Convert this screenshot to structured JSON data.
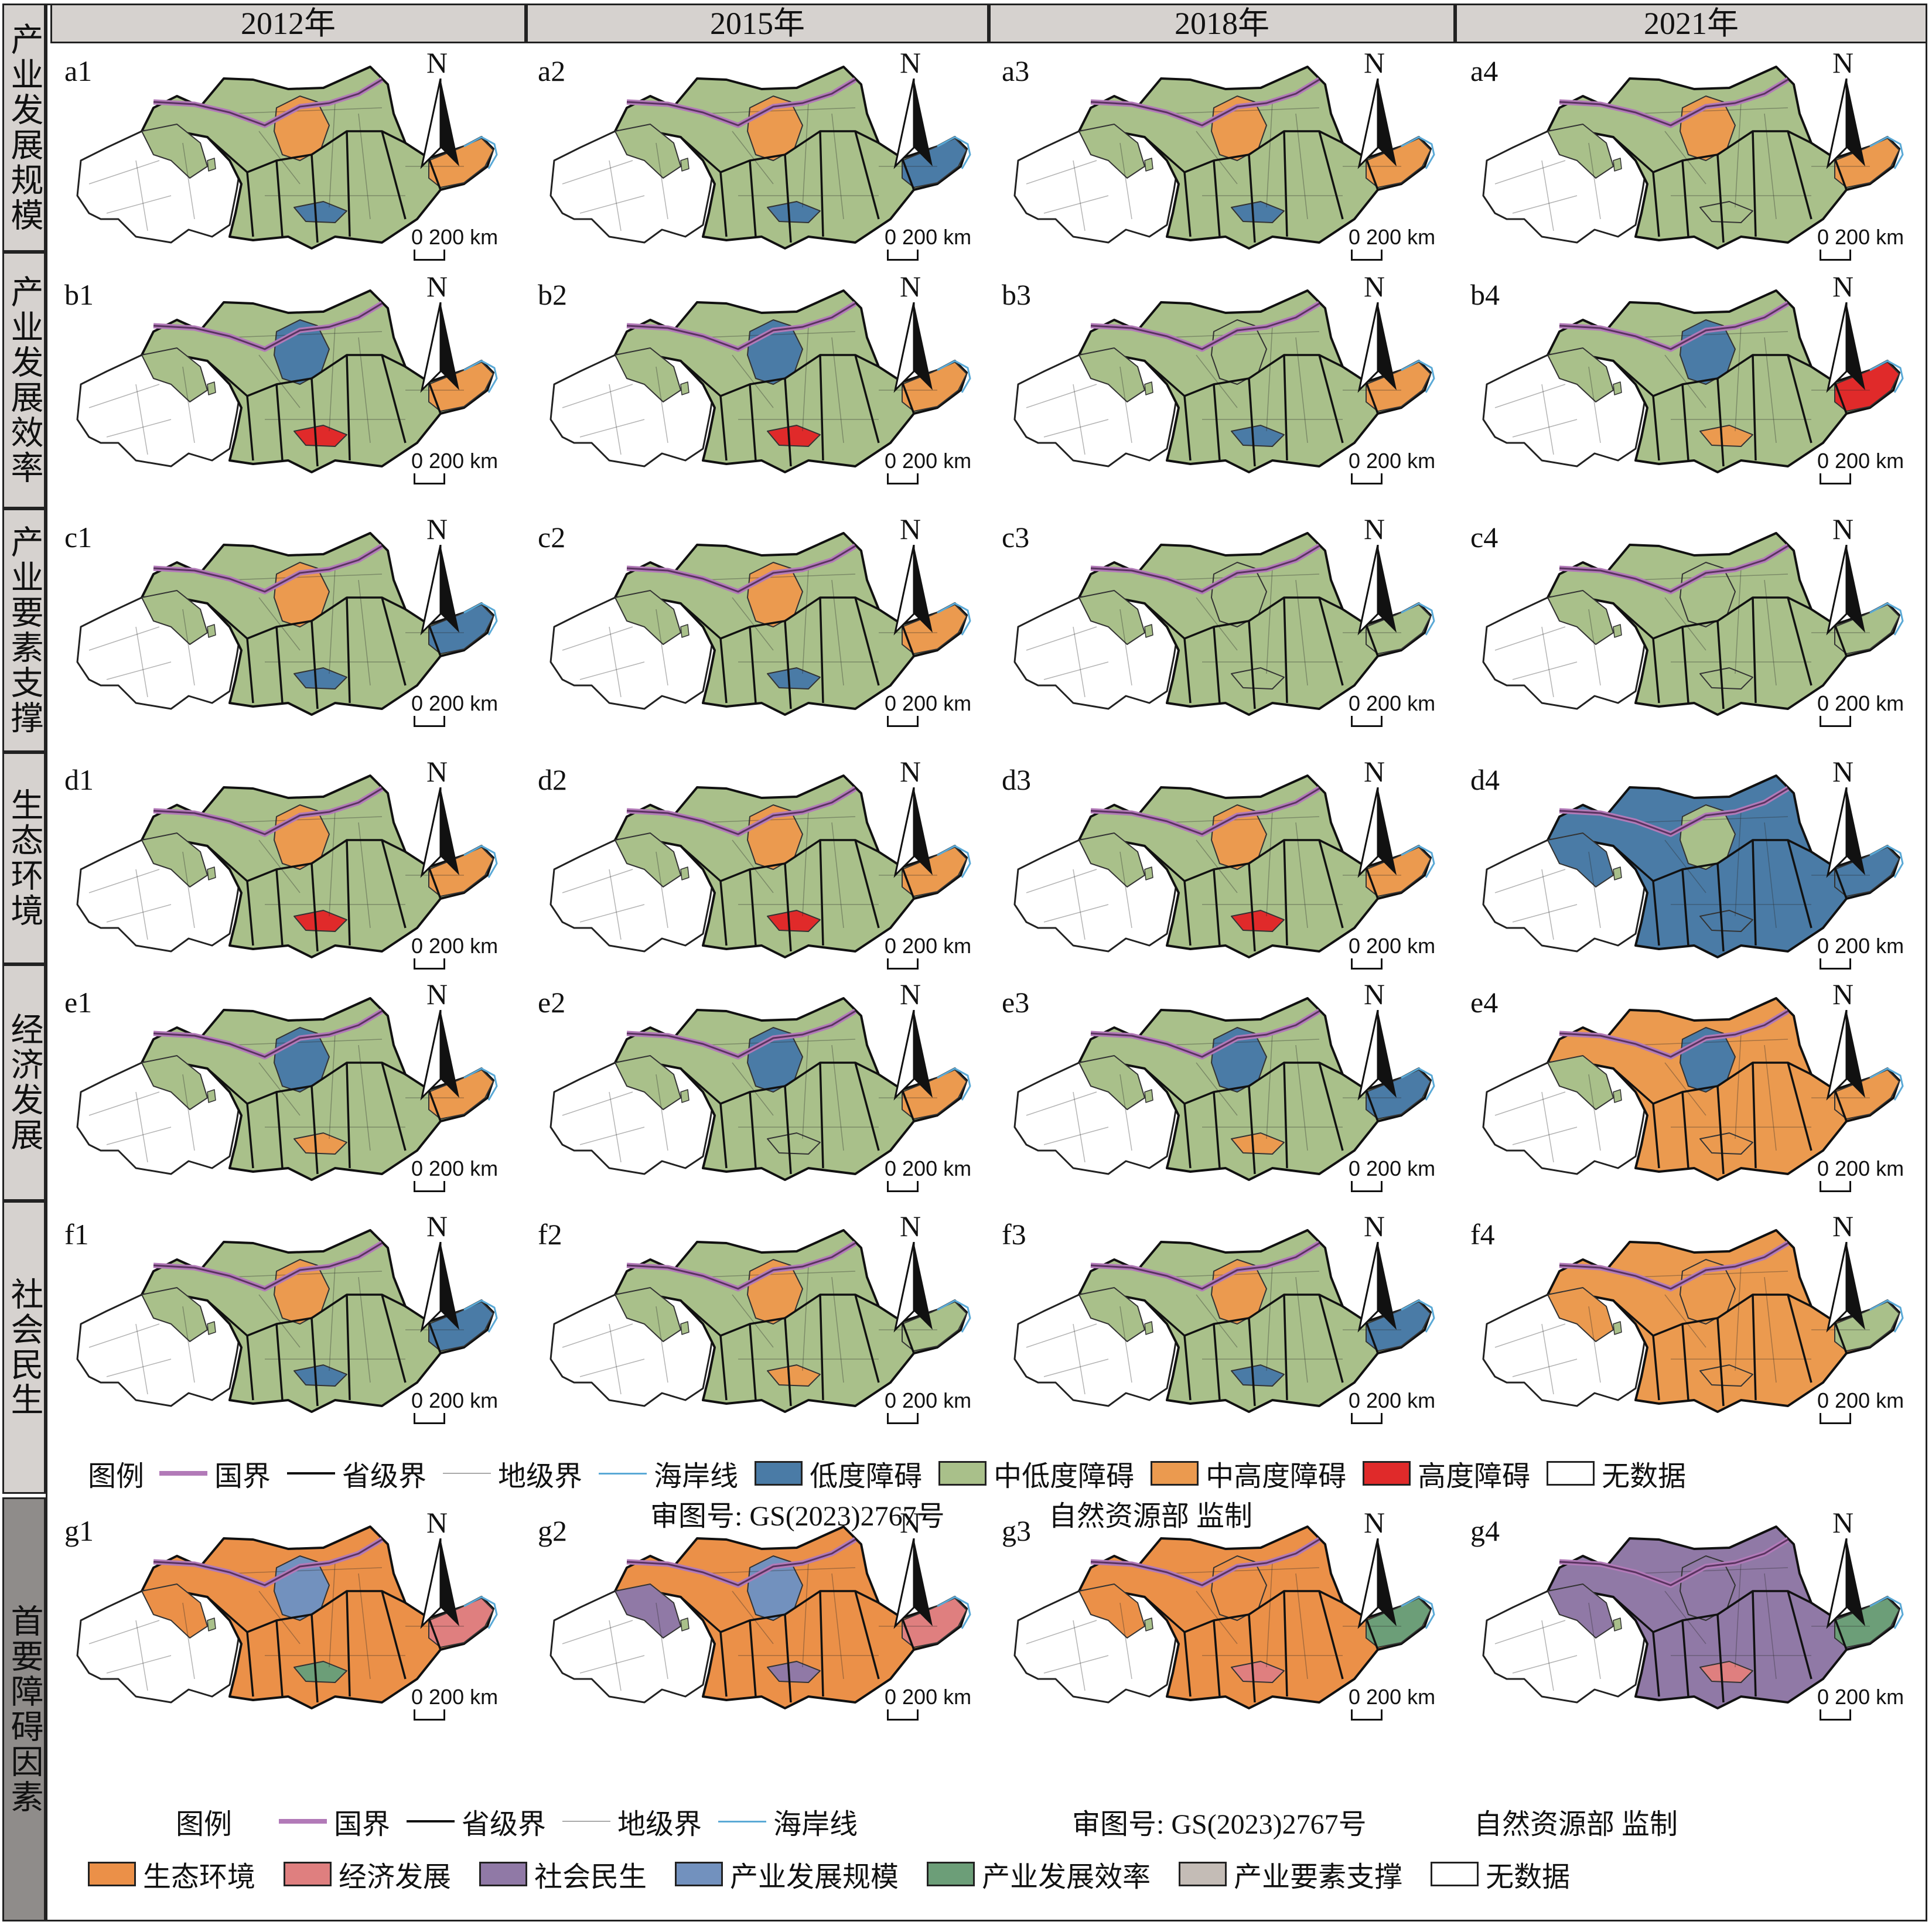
{
  "columns": [
    "2012年",
    "2015年",
    "2018年",
    "2021年"
  ],
  "rows": [
    {
      "id": "a",
      "label": "产业发展规模"
    },
    {
      "id": "b",
      "label": "产业发展效率"
    },
    {
      "id": "c",
      "label": "产业要素支撑"
    },
    {
      "id": "d",
      "label": "生态环境"
    },
    {
      "id": "e",
      "label": "经济发展"
    },
    {
      "id": "f",
      "label": "社会民生"
    },
    {
      "id": "g",
      "label": "首要障碍因素"
    }
  ],
  "panel_labels": {
    "a": [
      "a1",
      "a2",
      "a3",
      "a4"
    ],
    "b": [
      "b1",
      "b2",
      "b3",
      "b4"
    ],
    "c": [
      "c1",
      "c2",
      "c3",
      "c4"
    ],
    "d": [
      "d1",
      "d2",
      "d3",
      "d4"
    ],
    "e": [
      "e1",
      "e2",
      "e3",
      "e4"
    ],
    "f": [
      "f1",
      "f2",
      "f3",
      "f4"
    ],
    "g": [
      "g1",
      "g2",
      "g3",
      "g4"
    ]
  },
  "north_label": "N",
  "scale_label": "0 200 km",
  "legend1": {
    "title": "图例",
    "lines": [
      {
        "label": "国界",
        "color": "#b27ab8"
      },
      {
        "label": "省级界",
        "color": "#111111"
      },
      {
        "label": "地级界",
        "color": "#aaaaaa"
      },
      {
        "label": "海岸线",
        "color": "#5aa9d6"
      }
    ],
    "classes": [
      {
        "label": "低度障碍",
        "color": "#4a7ba6"
      },
      {
        "label": "中低度障碍",
        "color": "#a9c08a"
      },
      {
        "label": "中高度障碍",
        "color": "#eb9a4f"
      },
      {
        "label": "高度障碍",
        "color": "#e02a2a"
      },
      {
        "label": "无数据",
        "color": "#ffffff"
      }
    ],
    "review_no": "审图号: GS(2023)2767号",
    "supervisor": "自然资源部 监制"
  },
  "legend2": {
    "title": "图例",
    "lines": [
      {
        "label": "国界",
        "color": "#b27ab8"
      },
      {
        "label": "省级界",
        "color": "#111111"
      },
      {
        "label": "地级界",
        "color": "#aaaaaa"
      },
      {
        "label": "海岸线",
        "color": "#5aa9d6"
      }
    ],
    "review_no": "审图号: GS(2023)2767号",
    "supervisor": "自然资源部 监制",
    "classes": [
      {
        "label": "生态环境",
        "color": "#eb9048"
      },
      {
        "label": "经济发展",
        "color": "#df7f7f"
      },
      {
        "label": "社会民生",
        "color": "#9079a6"
      },
      {
        "label": "产业发展规模",
        "color": "#7291be"
      },
      {
        "label": "产业发展效率",
        "color": "#6c9e78"
      },
      {
        "label": "产业要素支撑",
        "color": "#c4bcb6"
      },
      {
        "label": "无数据",
        "color": "#ffffff"
      }
    ]
  },
  "map_fills": {
    "a": [
      {
        "base": "#a9c08a",
        "north": "#eb9a4f",
        "east": "#eb9a4f",
        "south": "#4a7ba6",
        "west": "#a9c08a"
      },
      {
        "base": "#a9c08a",
        "north": "#eb9a4f",
        "east": "#4a7ba6",
        "south": "#4a7ba6",
        "west": "#a9c08a"
      },
      {
        "base": "#a9c08a",
        "north": "#eb9a4f",
        "east": "#eb9a4f",
        "south": "#4a7ba6",
        "west": "#a9c08a"
      },
      {
        "base": "#a9c08a",
        "north": "#eb9a4f",
        "east": "#eb9a4f",
        "south": "#a9c08a",
        "west": "#a9c08a"
      }
    ],
    "b": [
      {
        "base": "#a9c08a",
        "north": "#4a7ba6",
        "east": "#eb9a4f",
        "south": "#e02a2a",
        "west": "#a9c08a"
      },
      {
        "base": "#a9c08a",
        "north": "#4a7ba6",
        "east": "#eb9a4f",
        "south": "#e02a2a",
        "west": "#a9c08a"
      },
      {
        "base": "#a9c08a",
        "north": "#a9c08a",
        "east": "#eb9a4f",
        "south": "#4a7ba6",
        "west": "#a9c08a"
      },
      {
        "base": "#a9c08a",
        "north": "#4a7ba6",
        "east": "#e02a2a",
        "south": "#eb9a4f",
        "west": "#a9c08a"
      }
    ],
    "c": [
      {
        "base": "#a9c08a",
        "north": "#eb9a4f",
        "east": "#4a7ba6",
        "south": "#4a7ba6",
        "west": "#a9c08a"
      },
      {
        "base": "#a9c08a",
        "north": "#eb9a4f",
        "east": "#eb9a4f",
        "south": "#4a7ba6",
        "west": "#a9c08a"
      },
      {
        "base": "#a9c08a",
        "north": "#a9c08a",
        "east": "#a9c08a",
        "south": "#a9c08a",
        "west": "#a9c08a"
      },
      {
        "base": "#a9c08a",
        "north": "#a9c08a",
        "east": "#a9c08a",
        "south": "#a9c08a",
        "west": "#a9c08a"
      }
    ],
    "d": [
      {
        "base": "#a9c08a",
        "north": "#eb9a4f",
        "east": "#eb9a4f",
        "south": "#e02a2a",
        "west": "#a9c08a"
      },
      {
        "base": "#a9c08a",
        "north": "#eb9a4f",
        "east": "#eb9a4f",
        "south": "#e02a2a",
        "west": "#a9c08a"
      },
      {
        "base": "#a9c08a",
        "north": "#eb9a4f",
        "east": "#eb9a4f",
        "south": "#e02a2a",
        "west": "#a9c08a"
      },
      {
        "base": "#4a7ba6",
        "north": "#a9c08a",
        "east": "#4a7ba6",
        "south": "#4a7ba6",
        "west": "#4a7ba6"
      }
    ],
    "e": [
      {
        "base": "#a9c08a",
        "north": "#4a7ba6",
        "east": "#eb9a4f",
        "south": "#eb9a4f",
        "west": "#a9c08a"
      },
      {
        "base": "#a9c08a",
        "north": "#4a7ba6",
        "east": "#eb9a4f",
        "south": "#a9c08a",
        "west": "#a9c08a"
      },
      {
        "base": "#a9c08a",
        "north": "#4a7ba6",
        "east": "#4a7ba6",
        "south": "#eb9a4f",
        "west": "#a9c08a"
      },
      {
        "base": "#eb9a4f",
        "north": "#4a7ba6",
        "east": "#eb9a4f",
        "south": "#eb9a4f",
        "west": "#a9c08a"
      }
    ],
    "f": [
      {
        "base": "#a9c08a",
        "north": "#eb9a4f",
        "east": "#4a7ba6",
        "south": "#4a7ba6",
        "west": "#a9c08a"
      },
      {
        "base": "#a9c08a",
        "north": "#eb9a4f",
        "east": "#a9c08a",
        "south": "#eb9a4f",
        "west": "#a9c08a"
      },
      {
        "base": "#a9c08a",
        "north": "#eb9a4f",
        "east": "#4a7ba6",
        "south": "#4a7ba6",
        "west": "#a9c08a"
      },
      {
        "base": "#eb9a4f",
        "north": "#eb9a4f",
        "east": "#a9c08a",
        "south": "#eb9a4f",
        "west": "#eb9a4f"
      }
    ],
    "g": [
      {
        "base": "#eb9048",
        "north": "#7291be",
        "east": "#df7f7f",
        "south": "#6c9e78",
        "west": "#eb9048"
      },
      {
        "base": "#eb9048",
        "north": "#7291be",
        "east": "#df7f7f",
        "south": "#9079a6",
        "west": "#9079a6"
      },
      {
        "base": "#eb9048",
        "north": "#eb9048",
        "east": "#6c9e78",
        "south": "#df7f7f",
        "west": "#eb9048"
      },
      {
        "base": "#9079a6",
        "north": "#9079a6",
        "east": "#6c9e78",
        "south": "#df7f7f",
        "west": "#9079a6"
      }
    ]
  }
}
